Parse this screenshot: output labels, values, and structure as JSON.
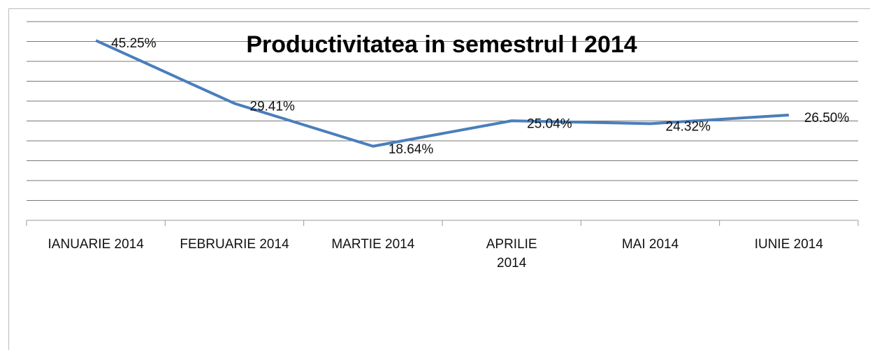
{
  "chart_data": {
    "type": "line",
    "title": "Productivitatea in semestrul I 2014",
    "categories": [
      "IANUARIE 2014",
      "FEBRUARIE 2014",
      "MARTIE 2014",
      "APRILIE 2014",
      "MAI 2014",
      "IUNIE 2014"
    ],
    "series": [
      {
        "name": "Productivitatea",
        "color": "#4a7ebb",
        "values": [
          45.25,
          29.41,
          18.64,
          25.04,
          24.32,
          26.5
        ],
        "value_labels": [
          "45.25%",
          "29.41%",
          "18.64%",
          "25.04%",
          "24.32%",
          "26.50%"
        ]
      }
    ],
    "ylim": [
      0,
      50
    ],
    "yticks": [
      0,
      5,
      10,
      15,
      20,
      25,
      30,
      35,
      40,
      45,
      50
    ],
    "grid": true
  }
}
